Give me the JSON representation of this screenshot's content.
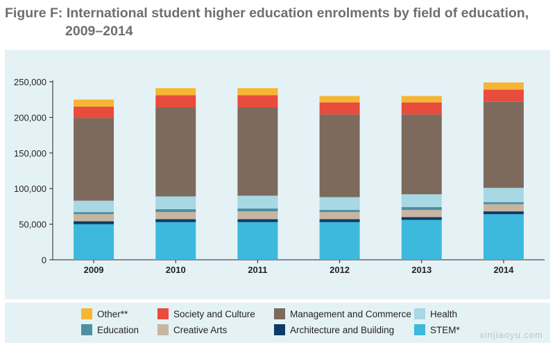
{
  "title_line1": "Figure F: International student higher education enrolments by field of education,",
  "title_line2": "2009–2014",
  "watermark": "xinjiaoyu.com",
  "chart_data": {
    "type": "bar",
    "stacked": true,
    "categories": [
      "2009",
      "2010",
      "2011",
      "2012",
      "2013",
      "2014"
    ],
    "y_ticks": [
      "0",
      "50,000",
      "100,000",
      "150,000",
      "200,000",
      "250,000"
    ],
    "ylim": [
      0,
      250000
    ],
    "grid": false,
    "legend_position": "bottom",
    "series": [
      {
        "name": "STEM*",
        "color": "#3cb9dc",
        "values": [
          50000,
          53000,
          53000,
          53000,
          56000,
          64000
        ]
      },
      {
        "name": "Architecture and Building",
        "color": "#0d3b66",
        "values": [
          4000,
          4000,
          4000,
          4000,
          4000,
          4000
        ]
      },
      {
        "name": "Creative Arts",
        "color": "#c8b5a0",
        "values": [
          10000,
          10000,
          11000,
          10000,
          10000,
          10000
        ]
      },
      {
        "name": "Education",
        "color": "#4e8fa1",
        "values": [
          3000,
          4000,
          4000,
          3000,
          4000,
          3000
        ]
      },
      {
        "name": "Health",
        "color": "#a7d8e4",
        "values": [
          16000,
          18000,
          18000,
          18000,
          18000,
          20000
        ]
      },
      {
        "name": "Management and Commerce",
        "color": "#7d6a5c",
        "values": [
          116000,
          125000,
          124000,
          116000,
          112000,
          121000
        ]
      },
      {
        "name": "Society and Culture",
        "color": "#e84c3d",
        "values": [
          16000,
          17000,
          17000,
          17000,
          17000,
          17000
        ]
      },
      {
        "name": "Other**",
        "color": "#f7b535",
        "values": [
          10000,
          10000,
          10000,
          9000,
          9000,
          10000
        ]
      }
    ]
  },
  "legend": [
    {
      "label": "Other**",
      "color": "#f7b535"
    },
    {
      "label": "Society and Culture",
      "color": "#e84c3d"
    },
    {
      "label": "Management and Commerce",
      "color": "#7d6a5c"
    },
    {
      "label": "Health",
      "color": "#a7d8e4"
    },
    {
      "label": "Education",
      "color": "#4e8fa1"
    },
    {
      "label": "Creative Arts",
      "color": "#c8b5a0"
    },
    {
      "label": "Architecture and Building",
      "color": "#0d3b66"
    },
    {
      "label": "STEM*",
      "color": "#3cb9dc"
    }
  ]
}
